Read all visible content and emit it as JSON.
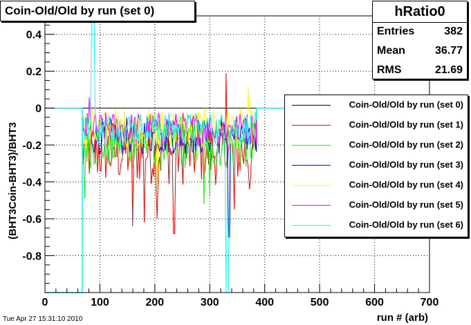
{
  "title": "Coin-Old/Old by run (set 0)",
  "date_stamp": "Tue Apr 27 15:31:10 2010",
  "stats": {
    "name": "hRatio0",
    "rows": [
      {
        "label": "Entries",
        "value": "382"
      },
      {
        "label": "Mean",
        "value": "36.77"
      },
      {
        "label": "RMS",
        "value": "21.69"
      }
    ]
  },
  "chart_data": {
    "type": "line",
    "xlabel": "run # (arb)",
    "ylabel": "(BHT3Coin-BHT3)/BHT3",
    "xlim": [
      0,
      700
    ],
    "ylim": [
      -1.0,
      0.5
    ],
    "x_ticks": [
      0,
      100,
      200,
      300,
      400,
      500,
      600,
      700
    ],
    "y_ticks": [
      -0.8,
      -0.6,
      -0.4,
      -0.2,
      0,
      0.2,
      0.4
    ],
    "y_tick_labels": [
      "-0.8",
      "-0.6",
      "-0.4",
      "-0.2",
      "0",
      "0.2",
      "0.4"
    ],
    "grid": true,
    "legend_position": "right",
    "series": [
      {
        "name": "Coin-Old/Old by run (set 0)",
        "color": "#000000",
        "x_range": [
          68,
          385
        ],
        "typical_range": [
          0.0,
          0.0
        ],
        "outliers": []
      },
      {
        "name": "Coin-Old/Old by run (set 1)",
        "color": "#ff0000",
        "x_range": [
          68,
          385
        ],
        "typical_range": [
          -0.42,
          -0.05
        ],
        "outliers": [
          [
            160,
            -0.64
          ],
          [
            180,
            -0.62
          ],
          [
            205,
            -0.6
          ],
          [
            235,
            -0.68
          ],
          [
            330,
            0.19
          ],
          [
            345,
            -0.55
          ],
          [
            372,
            -0.44
          ]
        ]
      },
      {
        "name": "Coin-Old/Old by run (set 2)",
        "color": "#00ff00",
        "x_range": [
          68,
          385
        ],
        "typical_range": [
          -0.33,
          -0.06
        ],
        "outliers": [
          [
            72,
            -0.49
          ],
          [
            290,
            -0.52
          ],
          [
            300,
            -0.48
          ]
        ]
      },
      {
        "name": "Coin-Old/Old by run (set 3)",
        "color": "#0000ff",
        "x_range": [
          68,
          385
        ],
        "typical_range": [
          -0.25,
          -0.05
        ],
        "outliers": [
          [
            335,
            -0.7
          ]
        ]
      },
      {
        "name": "Coin-Old/Old by run (set 4)",
        "color": "#ffff00",
        "x_range": [
          68,
          385
        ],
        "typical_range": [
          -0.22,
          0.0
        ],
        "outliers": [
          [
            370,
            0.11
          ],
          [
            205,
            -0.46
          ]
        ]
      },
      {
        "name": "Coin-Old/Old by run (set 5)",
        "color": "#ff00ff",
        "x_range": [
          68,
          385
        ],
        "typical_range": [
          -0.2,
          -0.02
        ],
        "outliers": [
          [
            80,
            0.06
          ]
        ]
      },
      {
        "name": "Coin-Old/Old by run (set 6)",
        "color": "#00ffff",
        "x_range": [
          68,
          385
        ],
        "typical_range": [
          -0.2,
          -0.02
        ],
        "outliers": [
          [
            85,
            0.55
          ],
          [
            88,
            0.55
          ],
          [
            330,
            -1.0
          ],
          [
            333,
            -1.0
          ]
        ]
      }
    ]
  }
}
